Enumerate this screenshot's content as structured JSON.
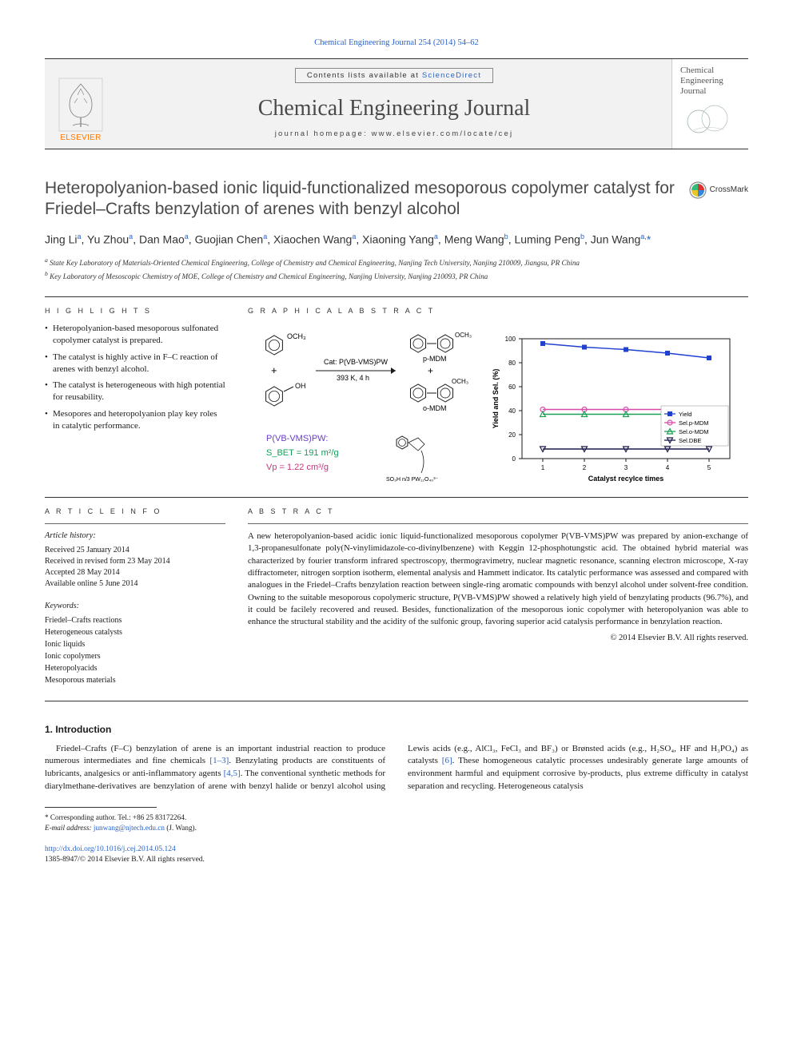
{
  "header_citation": "Chemical Engineering Journal 254 (2014) 54–62",
  "masthead": {
    "sd_prefix": "Contents lists available at ",
    "sd_link": "ScienceDirect",
    "journal_name": "Chemical Engineering Journal",
    "homepage": "journal homepage: www.elsevier.com/locate/cej",
    "publisher": "ELSEVIER",
    "cover_text": "Chemical Engineering Journal"
  },
  "crossmark": "CrossMark",
  "title": "Heteropolyanion-based ionic liquid-functionalized mesoporous copolymer catalyst for Friedel–Crafts benzylation of arenes with benzyl alcohol",
  "authors_html": "Jing Li<sup class='sup'>a</sup>, Yu Zhou<sup class='sup'>a</sup>, Dan Mao<sup class='sup'>a</sup>, Guojian Chen<sup class='sup'>a</sup>, Xiaochen Wang<sup class='sup'>a</sup>, Xiaoning Yang<sup class='sup'>a</sup>, Meng Wang<sup class='sup'>b</sup>, Luming Peng<sup class='sup'>b</sup>, Jun Wang<sup class='sup'>a,</sup><span class='star'>*</span>",
  "affiliations": [
    "a State Key Laboratory of Materials-Oriented Chemical Engineering, College of Chemistry and Chemical Engineering, Nanjing Tech University, Nanjing 210009, Jiangsu, PR China",
    "b Key Laboratory of Mesoscopic Chemistry of MOE, College of Chemistry and Chemical Engineering, Nanjing University, Nanjing 210093, PR China"
  ],
  "labels": {
    "highlights": "H I G H L I G H T S",
    "graphical_abstract": "G R A P H I C A L  A B S T R A C T",
    "article_info": "A R T I C L E  I N F O",
    "abstract": "A B S T R A C T"
  },
  "highlights": [
    "Heteropolyanion-based mesoporous sulfonated copolymer catalyst is prepared.",
    "The catalyst is highly active in F–C reaction of arenes with benzyl alcohol.",
    "The catalyst is heterogeneous with high potential for reusability.",
    "Mesopores and heteropolyanion play key roles in catalytic performance."
  ],
  "graphical_abstract": {
    "reaction": {
      "reagent1_sub": "OCH₃",
      "plus": "+",
      "reagent2_sub": "OH",
      "arrow_top": "Cat: P(VB-VMS)PW",
      "arrow_bottom": "393 K, 4 h",
      "product1_sub": "OCH₃",
      "product1_label": "p-MDM",
      "product2_sub": "OCH₃",
      "product2_label": "o-MDM"
    },
    "catalyst_box": {
      "name": "P(VB-VMS)PW:",
      "name_color": "#6a3fc9",
      "sbet": "S_BET = 191 m²/g",
      "sbet_color": "#14a05a",
      "vp": "Vp = 1.22 cm³/g",
      "vp_color": "#c9347e",
      "formula": "SO₃H  n/3 PW₁₂O₄₀³⁻"
    },
    "chart": {
      "type": "line",
      "x_label": "Catalyst recylce times",
      "y_label": "Yield and Sel. (%)",
      "x_ticks": [
        1,
        2,
        3,
        4,
        5
      ],
      "y_ticks": [
        0,
        20,
        40,
        60,
        80,
        100
      ],
      "xlim": [
        0.5,
        5.5
      ],
      "ylim": [
        0,
        100
      ],
      "series": [
        {
          "name": "Yield",
          "color": "#2040d0",
          "marker": "square-filled",
          "values": [
            96,
            93,
            91,
            88,
            84
          ]
        },
        {
          "name": "Sel.p-MDM",
          "color": "#d94aa8",
          "marker": "circle-open",
          "values": [
            41,
            41,
            41,
            41,
            41
          ]
        },
        {
          "name": "Sel.o-MDM",
          "color": "#1aa055",
          "marker": "triangle-open",
          "values": [
            37,
            37,
            37,
            37,
            37
          ]
        },
        {
          "name": "Sel.DBE",
          "color": "#1a1a4a",
          "marker": "triangle-down-open",
          "values": [
            8,
            8,
            8,
            8,
            8
          ]
        }
      ],
      "legend_pos": "right-lower",
      "font_size": 8,
      "axis_color": "#1a1a1a",
      "grid": false
    }
  },
  "article_info": {
    "history_head": "Article history:",
    "history": [
      "Received 25 January 2014",
      "Received in revised form 23 May 2014",
      "Accepted 28 May 2014",
      "Available online 5 June 2014"
    ],
    "keywords_head": "Keywords:",
    "keywords": [
      "Friedel–Crafts reactions",
      "Heterogeneous catalysts",
      "Ionic liquids",
      "Ionic copolymers",
      "Heteropolyacids",
      "Mesoporous materials"
    ]
  },
  "abstract": "A new heteropolyanion-based acidic ionic liquid-functionalized mesoporous copolymer P(VB-VMS)PW was prepared by anion-exchange of 1,3-propanesulfonate poly(N-vinylimidazole-co-divinylbenzene) with Keggin 12-phosphotungstic acid. The obtained hybrid material was characterized by fourier transform infrared spectroscopy, thermogravimetry, nuclear magnetic resonance, scanning electron microscope, X-ray diffractometer, nitrogen sorption isotherm, elemental analysis and Hammett indicator. Its catalytic performance was assessed and compared with analogues in the Friedel–Crafts benzylation reaction between single-ring aromatic compounds with benzyl alcohol under solvent-free condition. Owning to the suitable mesoporous copolymeric structure, P(VB-VMS)PW showed a relatively high yield of benzylating products (96.7%), and it could be facilely recovered and reused. Besides, functionalization of the mesoporous ionic copolymer with heteropolyanion was able to enhance the structural stability and the acidity of the sulfonic group, favoring superior acid catalysis performance in benzylation reaction.",
  "copyright": "© 2014 Elsevier B.V. All rights reserved.",
  "intro": {
    "head": "1. Introduction",
    "p1a": "Friedel–Crafts (F–C) benzylation of arene is an important industrial reaction to produce numerous intermediates and fine chemicals ",
    "p1_cite1": "[1–3]",
    "p1b": ". Benzylating products are constituents of lubri",
    "p2a": "cants, analgesics or anti-inflammatory agents ",
    "p2_cite1": "[4,5]",
    "p2b": ". The conventional synthetic methods for diarylmethane-derivatives are benzylation of arene with benzyl halide or benzyl alcohol using Lewis acids (e.g., AlCl₃, FeCl₃ and BF₃) or Brønsted acids (e.g., H₂SO₄, HF and H₃PO₄) as catalysts ",
    "p2_cite2": "[6]",
    "p2c": ". These homogeneous catalytic processes undesirably generate large amounts of environment harmful and equipment corrosive by-products, plus extreme difficulty in catalyst separation and recycling. Heterogeneous catalysis"
  },
  "footnotes": {
    "corr": "* Corresponding author. Tel.: +86 25 83172264.",
    "email_label": "E-mail address: ",
    "email": "junwang@njtech.edu.cn",
    "email_suffix": " (J. Wang)."
  },
  "doi": {
    "url": "http://dx.doi.org/10.1016/j.cej.2014.05.124",
    "issn_line": "1385-8947/© 2014 Elsevier B.V. All rights reserved."
  },
  "colors": {
    "link": "#2962c8",
    "elsevier_orange": "#ff7800",
    "title_grey": "#4a4a4a"
  }
}
